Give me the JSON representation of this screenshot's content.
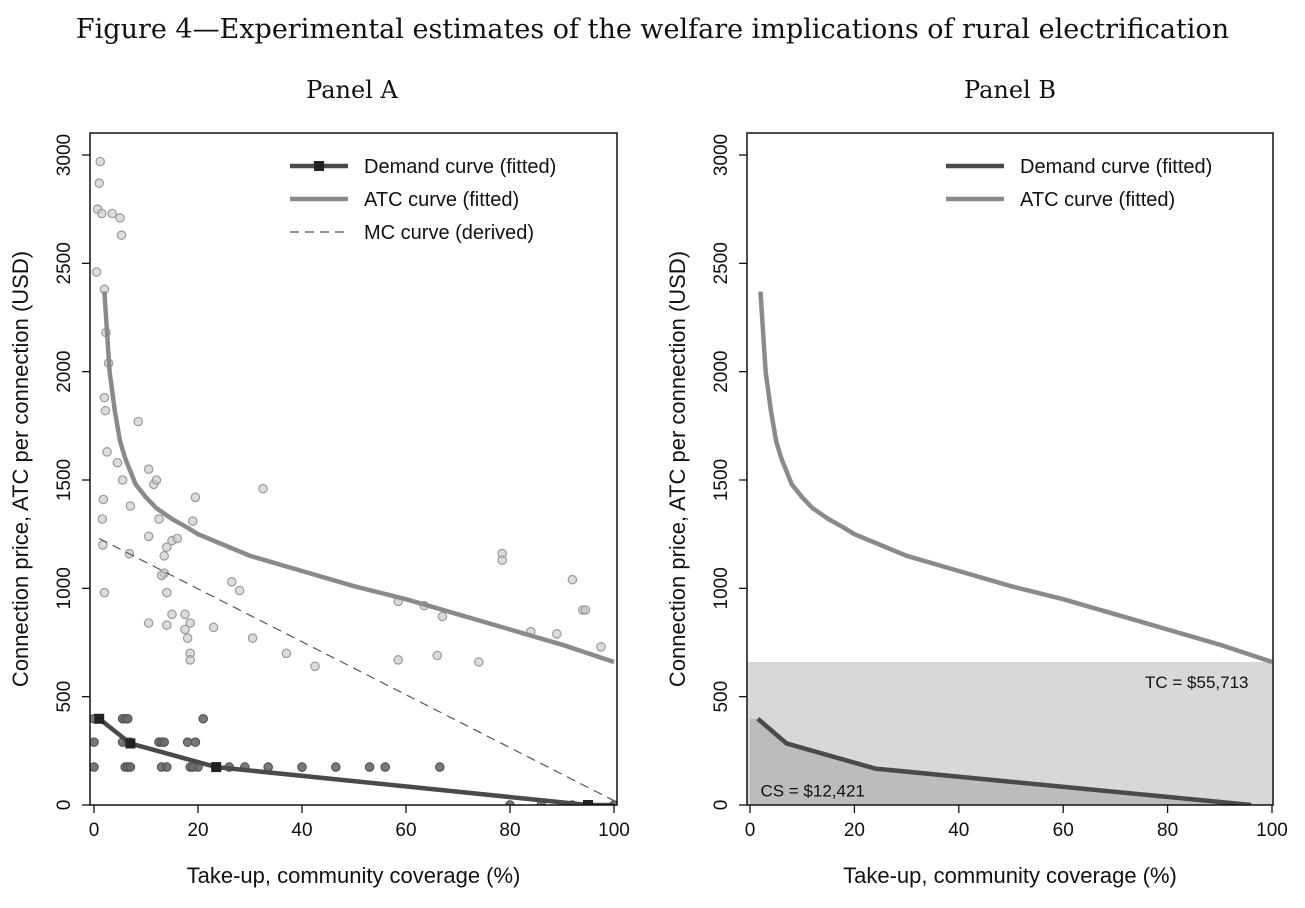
{
  "figure_title": "Figure 4—Experimental estimates of the welfare implications of rural electrification",
  "colors": {
    "demand": "#4a4a4a",
    "atc": "#8a8a8a",
    "mc": "#555555",
    "scatter_atc_fill": "#c4c4c4",
    "scatter_atc_stroke": "#9a9a9a",
    "scatter_demand_fill": "#6a6a6a",
    "tc_area": "#d8d8d8",
    "cs_area": "#bcbcbc"
  },
  "chart_data": [
    {
      "type": "scatter",
      "panel_title": "Panel A",
      "xlabel": "Take-up, community coverage (%)",
      "ylabel": "Connection price, ATC per connection (USD)",
      "xlim": [
        0,
        100
      ],
      "ylim": [
        0,
        3000
      ],
      "xticks": [
        "0",
        "20",
        "40",
        "60",
        "80",
        "100"
      ],
      "yticks": [
        "0",
        "500",
        "1000",
        "1500",
        "2000",
        "2500",
        "3000"
      ],
      "legend": {
        "placement": "top-right",
        "entries": [
          "Demand curve (fitted)",
          "ATC curve (fitted)",
          "MC curve (derived)"
        ]
      },
      "series": [
        {
          "name": "Demand curve (fitted)",
          "kind": "line-with-markers",
          "x": [
            1,
            7,
            23.5,
            95,
            100
          ],
          "y": [
            398,
            284,
            175,
            0,
            0
          ]
        },
        {
          "name": "ATC curve (fitted)",
          "kind": "line",
          "x": [
            2,
            3,
            4,
            5,
            6,
            8,
            10,
            12,
            15,
            18,
            20,
            25,
            30,
            40,
            50,
            60,
            70,
            80,
            90,
            100
          ],
          "y": [
            2370,
            2000,
            1820,
            1680,
            1600,
            1480,
            1420,
            1370,
            1320,
            1280,
            1250,
            1200,
            1150,
            1080,
            1010,
            950,
            880,
            810,
            740,
            660
          ]
        },
        {
          "name": "MC curve (derived)",
          "kind": "dashed-line",
          "x": [
            1,
            100
          ],
          "y": [
            1230,
            20
          ]
        },
        {
          "name": "",
          "kind": "points-light",
          "x": [
            1.2,
            1,
            0.7,
            1.5,
            0.5,
            3.5,
            5,
            5.3,
            2,
            2.3,
            2.8,
            2,
            2.2,
            2.5,
            4.5,
            5.5,
            8.5,
            1.8,
            1.6,
            7,
            10.5,
            11.5,
            12,
            1.7,
            2,
            6.8,
            12.5,
            10.5,
            14,
            15,
            16,
            13.5,
            13.5,
            19.5,
            19,
            13,
            14,
            15,
            18.5,
            17.5,
            18,
            18.5,
            10.5,
            14,
            17.5,
            18.5,
            23,
            26.5,
            28,
            30.5,
            32.5,
            37,
            42.5,
            58.5,
            58.5,
            63.5,
            66,
            67,
            74,
            78.5,
            78.5,
            84,
            89,
            92,
            94,
            94.5,
            97.5
          ],
          "y": [
            2970,
            2870,
            2750,
            2730,
            2460,
            2730,
            2710,
            2630,
            2380,
            2180,
            2040,
            1880,
            1820,
            1630,
            1580,
            1500,
            1770,
            1410,
            1320,
            1380,
            1550,
            1480,
            1500,
            1200,
            980,
            1160,
            1320,
            1240,
            1190,
            1220,
            1230,
            1150,
            1070,
            1420,
            1310,
            1060,
            980,
            880,
            840,
            880,
            770,
            700,
            840,
            830,
            810,
            670,
            820,
            1030,
            990,
            770,
            1460,
            700,
            640,
            940,
            670,
            920,
            690,
            870,
            660,
            1160,
            1130,
            800,
            790,
            1040,
            900,
            900,
            730
          ]
        },
        {
          "name": "",
          "kind": "points-dark",
          "x": [
            0,
            0,
            0,
            1,
            1,
            5.5,
            6,
            6.5,
            5.5,
            6.5,
            7,
            6,
            6.5,
            7,
            12.5,
            13,
            13.5,
            13,
            14,
            18,
            19.5,
            20,
            18.5,
            19,
            21,
            26,
            29,
            33.5,
            40,
            46.5,
            53,
            56,
            66.5,
            80,
            86,
            92,
            100
          ],
          "y": [
            398,
            290,
            175,
            398,
            398,
            398,
            398,
            398,
            290,
            290,
            290,
            175,
            175,
            175,
            290,
            290,
            290,
            175,
            175,
            290,
            290,
            175,
            175,
            175,
            398,
            175,
            175,
            175,
            175,
            175,
            175,
            175,
            175,
            0,
            0,
            0,
            0
          ]
        }
      ]
    },
    {
      "type": "line",
      "panel_title": "Panel B",
      "xlabel": "Take-up, community coverage (%)",
      "ylabel": "Connection price, ATC per connection (USD)",
      "xlim": [
        0,
        100
      ],
      "ylim": [
        0,
        3000
      ],
      "xticks": [
        "0",
        "20",
        "40",
        "60",
        "80",
        "100"
      ],
      "yticks": [
        "0",
        "500",
        "1000",
        "1500",
        "2000",
        "2500",
        "3000"
      ],
      "legend": {
        "placement": "top-right",
        "entries": [
          "Demand curve (fitted)",
          "ATC curve (fitted)"
        ]
      },
      "series": [
        {
          "name": "Demand curve (fitted)",
          "kind": "line",
          "x": [
            1.5,
            7,
            24,
            96
          ],
          "y": [
            398,
            284,
            168,
            0
          ]
        },
        {
          "name": "ATC curve (fitted)",
          "kind": "line",
          "x": [
            2,
            3,
            4,
            5,
            6,
            8,
            10,
            12,
            15,
            18,
            20,
            25,
            30,
            40,
            50,
            60,
            70,
            80,
            90,
            100
          ],
          "y": [
            2370,
            2000,
            1820,
            1680,
            1600,
            1480,
            1420,
            1370,
            1320,
            1280,
            1250,
            1200,
            1150,
            1080,
            1010,
            950,
            880,
            810,
            740,
            660
          ]
        }
      ],
      "areas": {
        "tc": {
          "label": "TC = $55,713",
          "y_top": 660
        },
        "cs": {
          "label": "CS = $12,421"
        }
      }
    }
  ]
}
